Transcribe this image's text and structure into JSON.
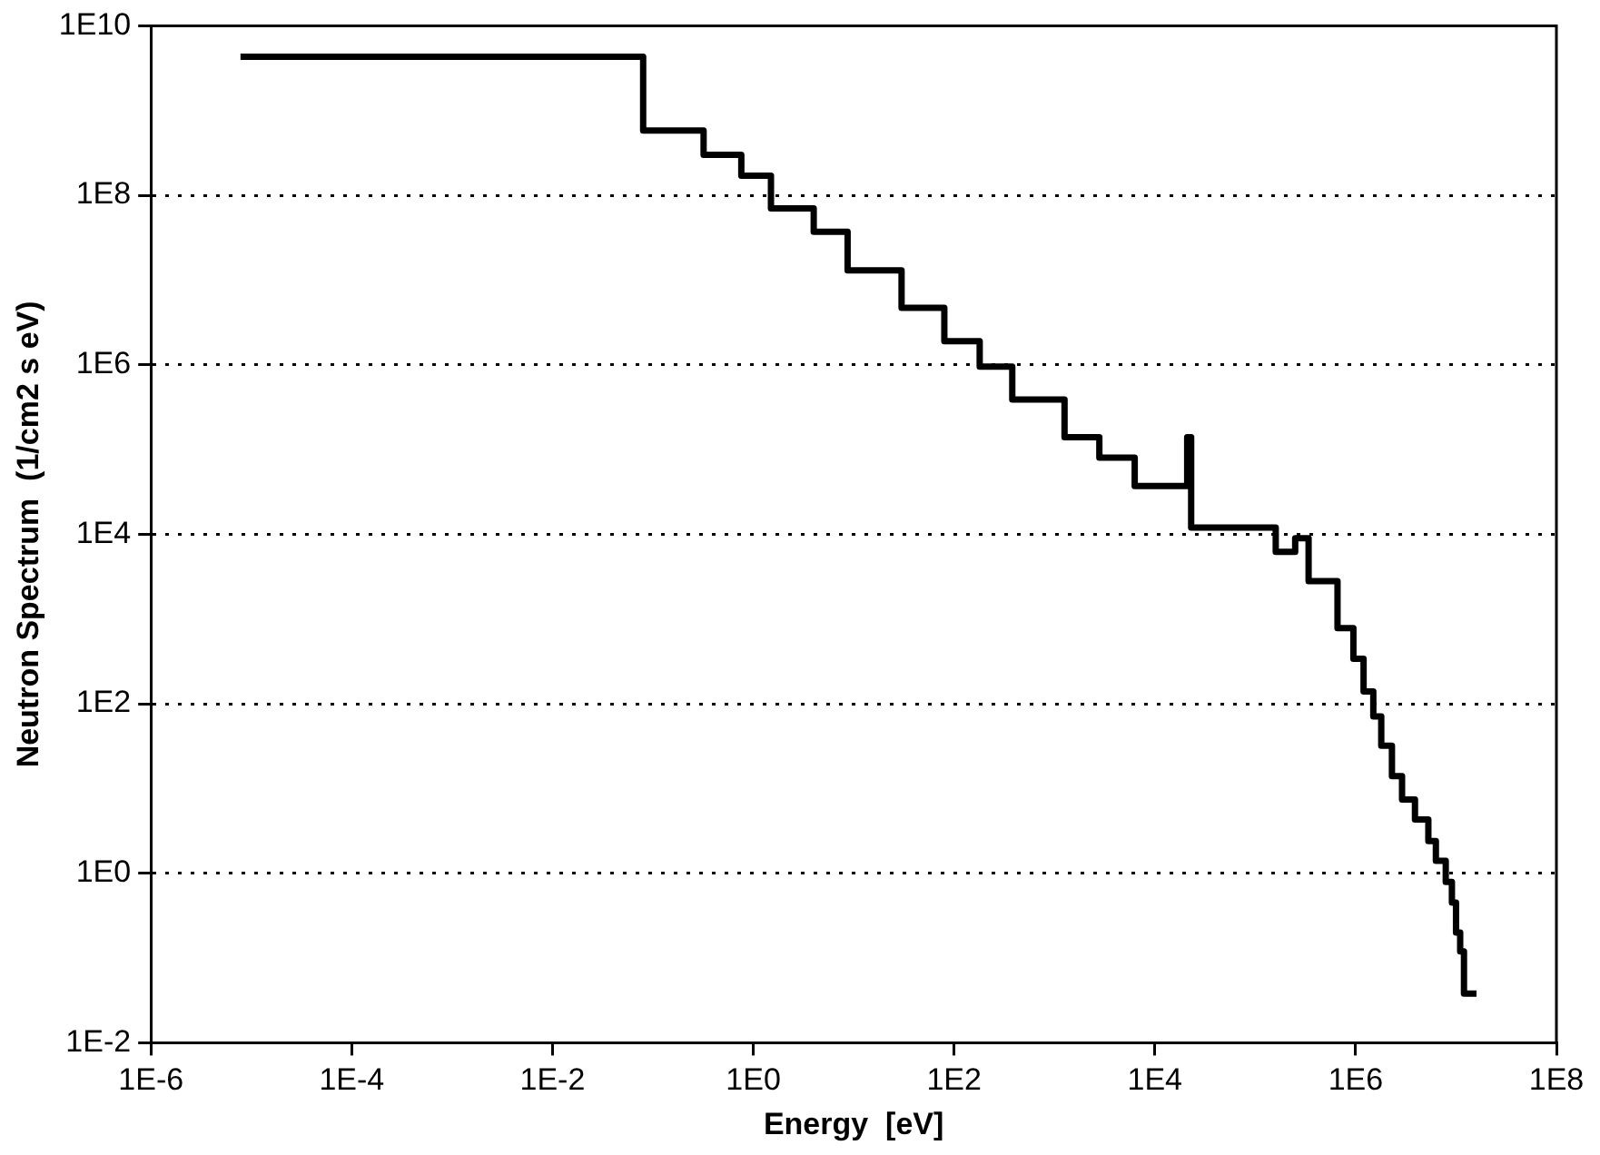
{
  "chart_data": {
    "type": "step",
    "xlabel": "Energy  [eV]",
    "ylabel": "Neutron Spectrum  (1/cm2 s eV)",
    "log": "xy",
    "grid": "y",
    "legend": false,
    "marker": "none",
    "line_style": "solid",
    "x": [
      7.8e-06,
      0.08,
      0.32,
      0.76,
      1.5,
      4,
      8.7,
      30,
      80,
      180,
      380,
      1260,
      2800,
      6300,
      21000,
      23000,
      160000,
      250000,
      340000,
      660000,
      950000,
      1200000,
      1500000,
      1800000,
      2300000,
      2900000,
      3900000,
      5300000,
      6300000,
      7900000,
      9100000,
      10000000,
      11000000,
      12000000,
      16000000
    ],
    "series": [
      {
        "color": "#000000",
        "values": [
          4300000000,
          580000000,
          300000000,
          170000000,
          70000000,
          37000000,
          13000000,
          4700000,
          1900000,
          950000,
          390000,
          140000,
          80000,
          37000,
          140000,
          12000,
          6200,
          9000,
          2800,
          780,
          340,
          140,
          71,
          32,
          14,
          7.4,
          4.3,
          2.4,
          1.4,
          0.79,
          0.45,
          0.2,
          0.12,
          0.038,
          0.038
        ]
      }
    ],
    "xlim": [
      1e-06,
      100000000
    ],
    "ylim": [
      0.01,
      10000000000
    ],
    "xticks": [
      {
        "value": 1e-06,
        "label": "1E-6"
      },
      {
        "value": 0.0001,
        "label": "1E-4"
      },
      {
        "value": 0.01,
        "label": "1E-2"
      },
      {
        "value": 1,
        "label": "1E0"
      },
      {
        "value": 100,
        "label": "1E2"
      },
      {
        "value": 10000,
        "label": "1E4"
      },
      {
        "value": 1000000,
        "label": "1E6"
      },
      {
        "value": 100000000,
        "label": "1E8"
      }
    ],
    "yticks": [
      {
        "value": 0.01,
        "label": "1E-2"
      },
      {
        "value": 1,
        "label": "1E0"
      },
      {
        "value": 100,
        "label": "1E2"
      },
      {
        "value": 10000,
        "label": "1E4"
      },
      {
        "value": 1000000,
        "label": "1E6"
      },
      {
        "value": 100000000,
        "label": "1E8"
      },
      {
        "value": 10000000000,
        "label": "1E10"
      }
    ]
  }
}
